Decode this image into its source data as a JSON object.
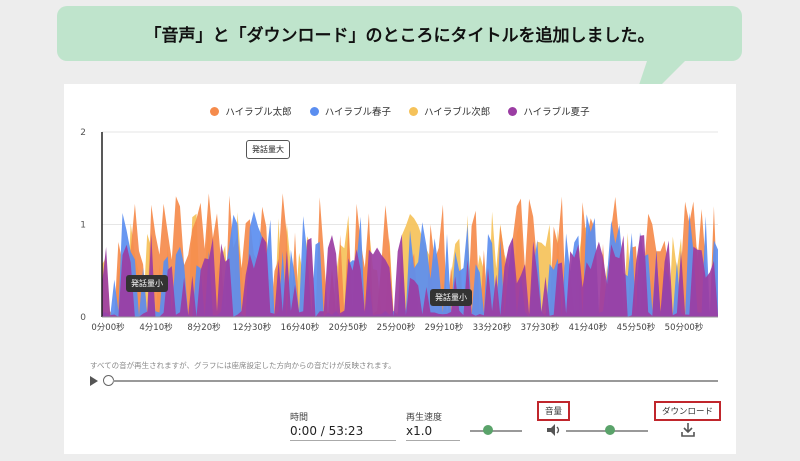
{
  "callout": {
    "text": "「音声」と「ダウンロード」のところにタイトルを追加しました。"
  },
  "colors": {
    "taro": "#f58b4c",
    "haruko": "#5b8ef0",
    "jiro": "#f5c25a",
    "natsuko": "#9b3da3",
    "callout_bg": "#bfe4cc",
    "highlight": "#c0262c",
    "slider": "#5aa36a"
  },
  "chart_data": {
    "type": "area",
    "stacked": false,
    "legend_position": "top-center",
    "grid": true,
    "ylim": [
      0,
      2
    ],
    "yticks": [
      "0",
      "1",
      "2"
    ],
    "xticks": [
      "0分00秒",
      "4分10秒",
      "8分20秒",
      "12分30秒",
      "16分40秒",
      "20分50秒",
      "25分00秒",
      "29分10秒",
      "33分20秒",
      "37分30秒",
      "41分40秒",
      "45分50秒",
      "50分00秒"
    ],
    "series": [
      {
        "name": "ハイラブル太郎",
        "color": "#f58b4c"
      },
      {
        "name": "ハイラブル春子",
        "color": "#5b8ef0"
      },
      {
        "name": "ハイラブル次郎",
        "color": "#f5c25a"
      },
      {
        "name": "ハイラブル夏子",
        "color": "#9b3da3"
      }
    ],
    "annotations": [
      "発話量大",
      "発話量小",
      "発話量小"
    ]
  },
  "note": "すべての音が再生されますが、グラフには座席設定した方向からの音だけが反映されます。",
  "controls": {
    "time_label": "時間",
    "time_value": "0:00 / 53:23",
    "speed_label": "再生速度",
    "speed_value": "x1.0",
    "volume_label": "音量",
    "download_label": "ダウンロード"
  }
}
